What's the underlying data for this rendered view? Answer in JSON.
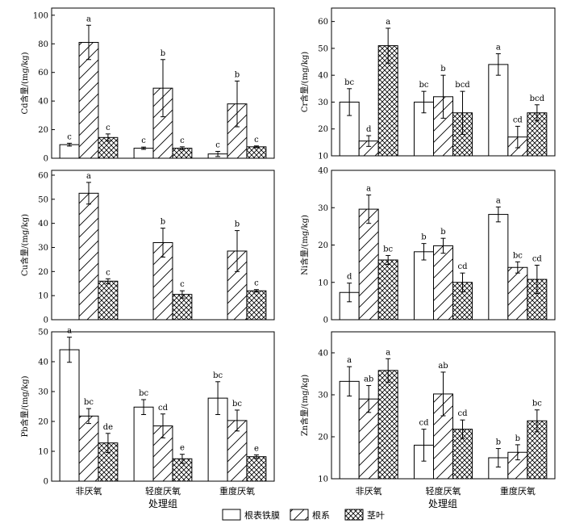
{
  "chart_data": [
    {
      "type": "bar",
      "ylabel": "Cd含量/(mg/kg)",
      "ylim": [
        0,
        105
      ],
      "yticks": [
        0,
        20,
        40,
        60,
        80,
        100
      ],
      "categories": [
        "非厌氧",
        "轻度厌氧",
        "重度厌氧"
      ],
      "series": [
        {
          "name": "根表铁膜",
          "values": [
            9.5,
            7.0,
            3.0
          ],
          "errors": [
            1.0,
            0.8,
            1.8
          ],
          "letters": [
            "c",
            "c",
            "c"
          ]
        },
        {
          "name": "根系",
          "values": [
            81,
            49,
            38
          ],
          "errors": [
            12,
            20,
            16
          ],
          "letters": [
            "a",
            "b",
            "b"
          ]
        },
        {
          "name": "茎叶",
          "values": [
            14.5,
            7.0,
            8.0
          ],
          "errors": [
            2.5,
            1.0,
            0.6
          ],
          "letters": [
            "c",
            "c",
            "c"
          ]
        }
      ]
    },
    {
      "type": "bar",
      "ylabel": "Cr含量/(mg/kg)",
      "ylim": [
        10,
        65
      ],
      "yticks": [
        10,
        20,
        30,
        40,
        50,
        60
      ],
      "categories": [
        "非厌氧",
        "轻度厌氧",
        "重度厌氧"
      ],
      "series": [
        {
          "name": "根表铁膜",
          "values": [
            30,
            30,
            44
          ],
          "errors": [
            5,
            4,
            4
          ],
          "letters": [
            "bc",
            "bc",
            "a"
          ]
        },
        {
          "name": "根系",
          "values": [
            15.5,
            32,
            17
          ],
          "errors": [
            2,
            8,
            4
          ],
          "letters": [
            "d",
            "b",
            "cd"
          ]
        },
        {
          "name": "茎叶",
          "values": [
            51,
            26,
            26
          ],
          "errors": [
            6.5,
            8,
            3
          ],
          "letters": [
            "a",
            "bcd",
            "bcd"
          ]
        }
      ]
    },
    {
      "type": "bar",
      "ylabel": "Cu含量/(mg/kg)",
      "ylim": [
        0,
        62
      ],
      "yticks": [
        0,
        10,
        20,
        30,
        40,
        50,
        60
      ],
      "categories": [
        "非厌氧",
        "轻度厌氧",
        "重度厌氧"
      ],
      "series": [
        {
          "name": "根表铁膜",
          "values": [
            null,
            null,
            null
          ],
          "errors": [
            null,
            null,
            null
          ],
          "letters": [
            "",
            "",
            ""
          ]
        },
        {
          "name": "根系",
          "values": [
            52.5,
            32,
            28.5
          ],
          "errors": [
            4.5,
            6,
            8.5
          ],
          "letters": [
            "a",
            "b",
            "b"
          ]
        },
        {
          "name": "茎叶",
          "values": [
            16,
            10.5,
            12
          ],
          "errors": [
            1,
            1.5,
            0.5
          ],
          "letters": [
            "c",
            "c",
            "c"
          ]
        }
      ]
    },
    {
      "type": "bar",
      "ylabel": "Ni含量/(mg/kg)",
      "ylim": [
        0,
        40
      ],
      "yticks": [
        0,
        10,
        20,
        30,
        40
      ],
      "categories": [
        "非厌氧",
        "轻度厌氧",
        "重度厌氧"
      ],
      "series": [
        {
          "name": "根表铁膜",
          "values": [
            7.3,
            18.2,
            28.2
          ],
          "errors": [
            2.5,
            2.2,
            2
          ],
          "letters": [
            "d",
            "b",
            "a"
          ]
        },
        {
          "name": "根系",
          "values": [
            29.6,
            19.8,
            14
          ],
          "errors": [
            3.8,
            2,
            1.5
          ],
          "letters": [
            "a",
            "b",
            "bc"
          ]
        },
        {
          "name": "茎叶",
          "values": [
            16,
            10,
            10.8
          ],
          "errors": [
            1.2,
            2.5,
            3.8
          ],
          "letters": [
            "bc",
            "cd",
            "cd"
          ]
        }
      ]
    },
    {
      "type": "bar",
      "ylabel": "Pb含量/(mg/kg)",
      "ylim": [
        0,
        50
      ],
      "yticks": [
        0,
        10,
        20,
        30,
        40,
        50
      ],
      "categories": [
        "非厌氧",
        "轻度厌氧",
        "重度厌氧"
      ],
      "series": [
        {
          "name": "根表铁膜",
          "values": [
            44,
            24.8,
            27.8
          ],
          "errors": [
            4.2,
            2.5,
            5.5
          ],
          "letters": [
            "a",
            "bc",
            "bc"
          ]
        },
        {
          "name": "根系",
          "values": [
            21.8,
            18.5,
            20.3
          ],
          "errors": [
            2.5,
            4,
            3.5
          ],
          "letters": [
            "bc",
            "cd",
            "bc"
          ]
        },
        {
          "name": "茎叶",
          "values": [
            12.8,
            7.5,
            8.2
          ],
          "errors": [
            3.2,
            1.5,
            0.6
          ],
          "letters": [
            "de",
            "e",
            "e"
          ]
        }
      ]
    },
    {
      "type": "bar",
      "ylabel": "Zn含量/(mg/kg)",
      "ylim": [
        10,
        45
      ],
      "yticks": [
        10,
        20,
        30,
        40
      ],
      "categories": [
        "非厌氧",
        "轻度厌氧",
        "重度厌氧"
      ],
      "series": [
        {
          "name": "根表铁膜",
          "values": [
            33.2,
            18,
            15
          ],
          "errors": [
            3.5,
            3.8,
            2.2
          ],
          "letters": [
            "a",
            "cd",
            "b"
          ]
        },
        {
          "name": "根系",
          "values": [
            29,
            30.2,
            16.3
          ],
          "errors": [
            3.2,
            5.2,
            1.8
          ],
          "letters": [
            "ab",
            "ab",
            "b"
          ]
        },
        {
          "name": "茎叶",
          "values": [
            35.8,
            21.8,
            23.8
          ],
          "errors": [
            2.8,
            2.2,
            2.6
          ],
          "letters": [
            "a",
            "cd",
            "bc"
          ]
        }
      ]
    }
  ],
  "xaxis_title": "处理组",
  "legend": {
    "placement": "bottom-center",
    "items": [
      {
        "name": "根表铁膜",
        "pattern": "blank"
      },
      {
        "name": "根系",
        "pattern": "diagonal"
      },
      {
        "name": "茎叶",
        "pattern": "crosshatch"
      }
    ]
  }
}
